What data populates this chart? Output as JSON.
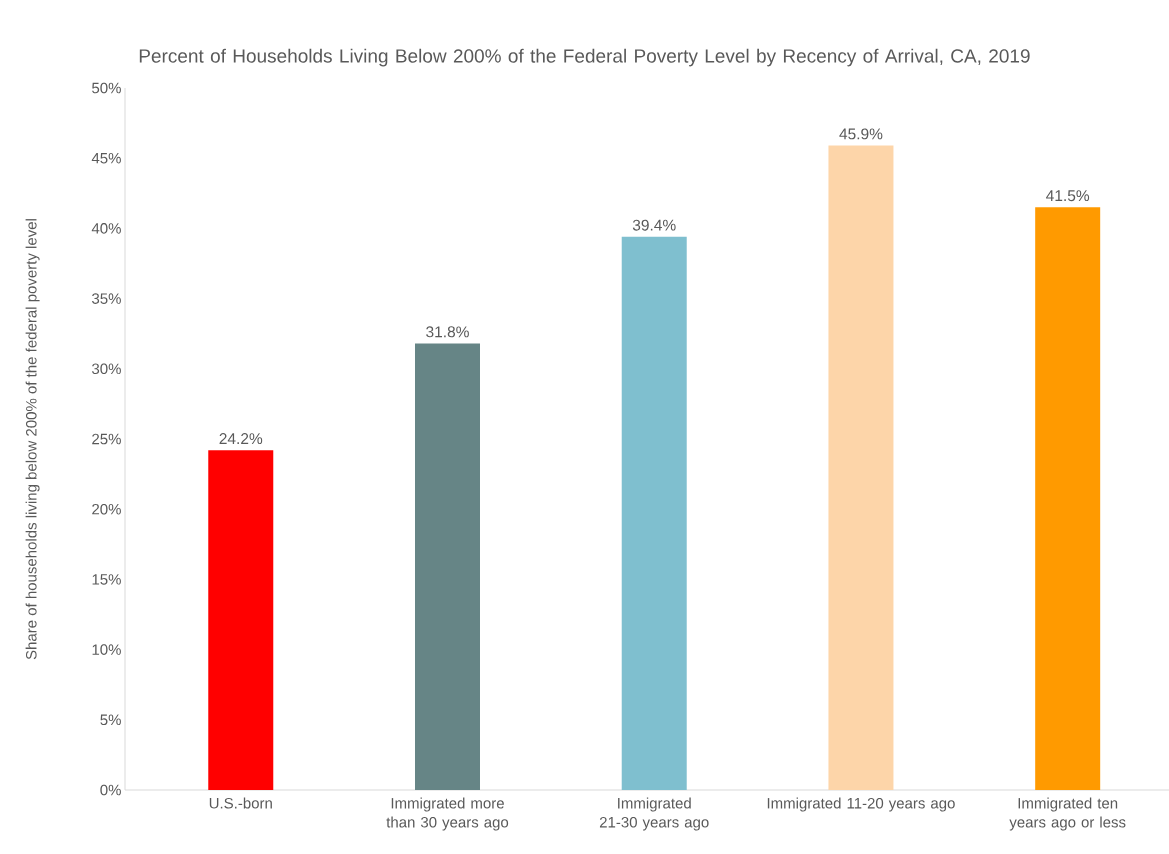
{
  "chart_data": {
    "type": "bar",
    "title": "Percent of Households Living Below 200% of the Federal Poverty Level by Recency of Arrival, CA, 2019",
    "ylabel": "Share of households living below 200% of the federal poverty level",
    "categories": [
      "U.S.-born",
      "Immigrated more than 30 years ago",
      "Immigrated 21-30 years ago",
      "Immigrated 11-20 years ago",
      "Immigrated ten years ago or less"
    ],
    "values": [
      24.2,
      31.8,
      39.4,
      45.9,
      41.5
    ],
    "colors": [
      "#ff0000",
      "#668586",
      "#7fbfcf",
      "#fdd5a9",
      "#ff9a00"
    ],
    "value_labels": [
      "24.2%",
      "31.8%",
      "39.4%",
      "45.9%",
      "41.5%"
    ],
    "ylim": [
      0,
      50
    ],
    "yticks": [
      {
        "value": 0,
        "label": "0%"
      },
      {
        "value": 5,
        "label": "5%"
      },
      {
        "value": 10,
        "label": "10%"
      },
      {
        "value": 15,
        "label": "15%"
      },
      {
        "value": 20,
        "label": "20%"
      },
      {
        "value": 25,
        "label": "25%"
      },
      {
        "value": 30,
        "label": "30%"
      },
      {
        "value": 35,
        "label": "35%"
      },
      {
        "value": 40,
        "label": "40%"
      },
      {
        "value": 45,
        "label": "45%"
      },
      {
        "value": 50,
        "label": "50%"
      }
    ],
    "grid": false
  }
}
